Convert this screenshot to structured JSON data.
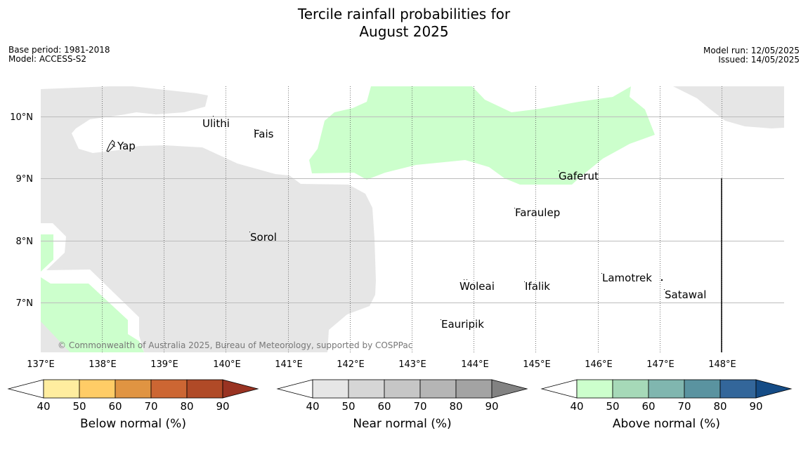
{
  "title": {
    "line1": "Tercile rainfall probabilities for",
    "line2": "August 2025"
  },
  "meta_left": {
    "base_period": "Base period: 1981-2018",
    "model": "Model: ACCESS-S2"
  },
  "meta_right": {
    "model_run": "Model run: 12/05/2025",
    "issued": "Issued: 14/05/2025"
  },
  "map": {
    "lon_labels": [
      "137°E",
      "138°E",
      "139°E",
      "140°E",
      "141°E",
      "142°E",
      "143°E",
      "144°E",
      "145°E",
      "146°E",
      "147°E",
      "148°E"
    ],
    "lat_labels": [
      "10°N",
      "9°N",
      "8°N",
      "7°N"
    ],
    "places": [
      "Yap",
      "Ulithi",
      "Fais",
      "Gaferut",
      "Faraulep",
      "Sorol",
      "Woleai",
      "Ifalik",
      "Lamotrek",
      "Satawal",
      "Eauripik"
    ],
    "copyright": "© Commonwealth of Australia 2025, Bureau of Meteorology, supported by COSPPac",
    "land_color": "#000000",
    "near_normal_fill": "#e6e6e6",
    "above_normal_fill": "#ccffcc"
  },
  "colorbars": [
    {
      "id": "below",
      "label": "Below normal (%)",
      "ticks": [
        "40",
        "50",
        "60",
        "70",
        "80",
        "90"
      ],
      "colors": [
        "#ffffff",
        "#ffed9f",
        "#ffcc66",
        "#e09442",
        "#cc6633",
        "#b04a27",
        "#993322"
      ]
    },
    {
      "id": "near",
      "label": "Near normal (%)",
      "ticks": [
        "40",
        "50",
        "60",
        "70",
        "80",
        "90"
      ],
      "colors": [
        "#ffffff",
        "#e6e6e6",
        "#d6d6d6",
        "#c6c6c6",
        "#b5b5b5",
        "#a3a3a3",
        "#828282"
      ]
    },
    {
      "id": "above",
      "label": "Above normal (%)",
      "ticks": [
        "40",
        "50",
        "60",
        "70",
        "80",
        "90"
      ],
      "colors": [
        "#ffffff",
        "#ccffcc",
        "#a6d9b8",
        "#80b6af",
        "#5a93a0",
        "#33669a",
        "#154c86"
      ]
    }
  ]
}
